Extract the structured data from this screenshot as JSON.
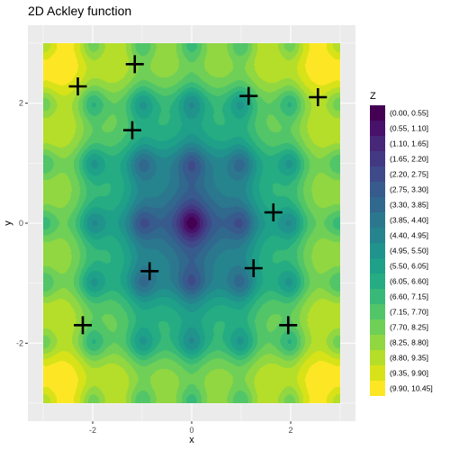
{
  "chart_data": {
    "type": "heatmap",
    "subtype": "filled-contour",
    "title": "2D Ackley function",
    "xlabel": "x",
    "ylabel": "y",
    "xlim": [
      -3,
      3
    ],
    "ylim": [
      -3,
      3
    ],
    "x_ticks": [
      -2,
      0,
      2
    ],
    "y_ticks": [
      -2,
      0,
      2
    ],
    "grid": true,
    "legend_placement": "right",
    "legend_title": "Z",
    "legend": [
      {
        "label": "(0.00, 0.55]",
        "color": "#440154"
      },
      {
        "label": "(0.55, 1.10]",
        "color": "#48116A"
      },
      {
        "label": "(1.10, 1.65]",
        "color": "#472777"
      },
      {
        "label": "(1.65, 2.20]",
        "color": "#433983"
      },
      {
        "label": "(2.20, 2.75]",
        "color": "#3E4A89"
      },
      {
        "label": "(2.75, 3.30]",
        "color": "#375B8D"
      },
      {
        "label": "(3.30, 3.85]",
        "color": "#31688E"
      },
      {
        "label": "(3.85, 4.40]",
        "color": "#2B788E"
      },
      {
        "label": "(4.40, 4.95]",
        "color": "#25848E"
      },
      {
        "label": "(4.95, 5.50]",
        "color": "#20938C"
      },
      {
        "label": "(5.50, 6.05]",
        "color": "#1FA088"
      },
      {
        "label": "(6.05, 6.60]",
        "color": "#25AC82"
      },
      {
        "label": "(6.60, 7.15]",
        "color": "#38B977"
      },
      {
        "label": "(7.15, 7.70]",
        "color": "#52C569"
      },
      {
        "label": "(7.70, 8.25]",
        "color": "#6FCF57"
      },
      {
        "label": "(8.25, 8.80]",
        "color": "#91D742"
      },
      {
        "label": "(8.80, 9.35]",
        "color": "#B5DE2B"
      },
      {
        "label": "(9.35, 9.90]",
        "color": "#D8E219"
      },
      {
        "label": "(9.90, 10.45]",
        "color": "#FDE725"
      }
    ],
    "points": [
      {
        "x": -1.15,
        "y": 2.65
      },
      {
        "x": -2.3,
        "y": 2.28
      },
      {
        "x": 1.15,
        "y": 2.12
      },
      {
        "x": 2.55,
        "y": 2.1
      },
      {
        "x": -1.2,
        "y": 1.55
      },
      {
        "x": 1.65,
        "y": 0.18
      },
      {
        "x": -0.85,
        "y": -0.8
      },
      {
        "x": 1.25,
        "y": -0.75
      },
      {
        "x": -2.2,
        "y": -1.7
      },
      {
        "x": 1.95,
        "y": -1.7
      }
    ]
  }
}
